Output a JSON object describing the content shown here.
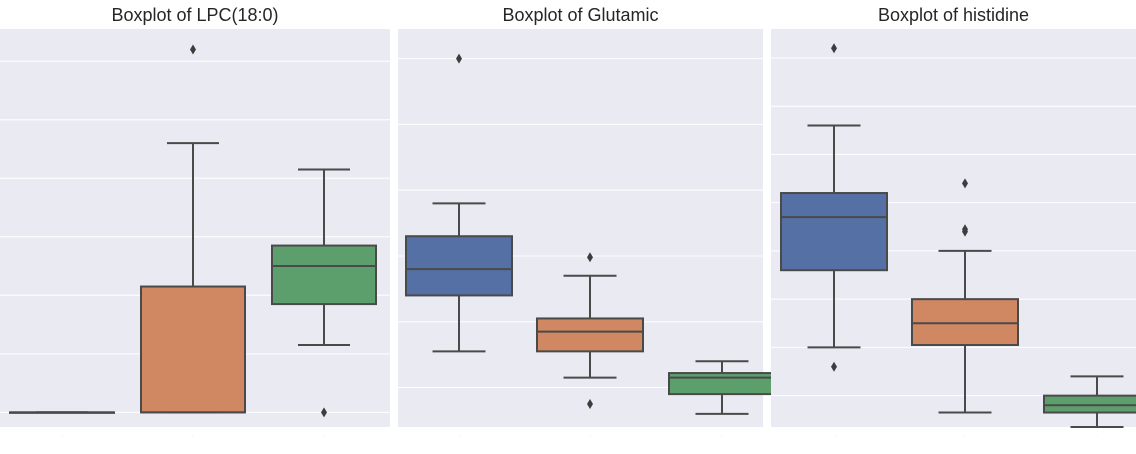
{
  "chart_data": [
    {
      "type": "box",
      "title": "Boxplot of LPC(18:0)",
      "xlabel": "",
      "ylabel": "",
      "categories": [
        "-",
        "-",
        "-"
      ],
      "ylim": [
        0.75,
        7.55
      ],
      "grid": true,
      "boxes": [
        {
          "color": "#5470a5",
          "whisker_low": 1.0,
          "q1": 1.0,
          "median": 1.0,
          "q3": 1.0,
          "whisker_high": 1.0,
          "outliers": []
        },
        {
          "color": "#cf8862",
          "whisker_low": 1.0,
          "q1": 1.0,
          "median": 1.0,
          "q3": 3.15,
          "whisker_high": 5.6,
          "outliers": [
            7.2
          ]
        },
        {
          "color": "#5c9f6d",
          "whisker_low": 2.15,
          "q1": 2.85,
          "median": 3.5,
          "q3": 3.85,
          "whisker_high": 5.15,
          "outliers": [
            1.0
          ]
        }
      ]
    },
    {
      "type": "box",
      "title": "Boxplot of Glutamic",
      "xlabel": "",
      "ylabel": "",
      "categories": [
        "-",
        "-",
        "-"
      ],
      "ylim": [
        0.4,
        6.45
      ],
      "grid": true,
      "boxes": [
        {
          "color": "#5470a5",
          "whisker_low": 1.55,
          "q1": 2.4,
          "median": 2.8,
          "q3": 3.3,
          "whisker_high": 3.8,
          "outliers": [
            6.0
          ]
        },
        {
          "color": "#cf8862",
          "whisker_low": 1.15,
          "q1": 1.55,
          "median": 1.85,
          "q3": 2.05,
          "whisker_high": 2.7,
          "outliers": [
            0.75,
            2.98
          ]
        },
        {
          "color": "#5c9f6d",
          "whisker_low": 0.6,
          "q1": 0.9,
          "median": 1.15,
          "q3": 1.22,
          "whisker_high": 1.4,
          "outliers": []
        }
      ]
    },
    {
      "type": "box",
      "title": "Boxplot of histidine",
      "xlabel": "",
      "ylabel": "",
      "categories": [
        "-",
        "-",
        "-"
      ],
      "ylim": [
        0.35,
        8.6
      ],
      "grid": true,
      "boxes": [
        {
          "color": "#5470a5",
          "whisker_low": 2.0,
          "q1": 3.6,
          "median": 4.7,
          "q3": 5.2,
          "whisker_high": 6.6,
          "outliers": [
            1.6,
            8.2
          ]
        },
        {
          "color": "#cf8862",
          "whisker_low": 0.65,
          "q1": 2.05,
          "median": 2.5,
          "q3": 3.0,
          "whisker_high": 4.0,
          "outliers": [
            4.4,
            4.45,
            5.4
          ]
        },
        {
          "color": "#5c9f6d",
          "whisker_low": 0.35,
          "q1": 0.65,
          "median": 0.8,
          "q3": 1.0,
          "whisker_high": 1.4,
          "outliers": []
        }
      ]
    }
  ]
}
